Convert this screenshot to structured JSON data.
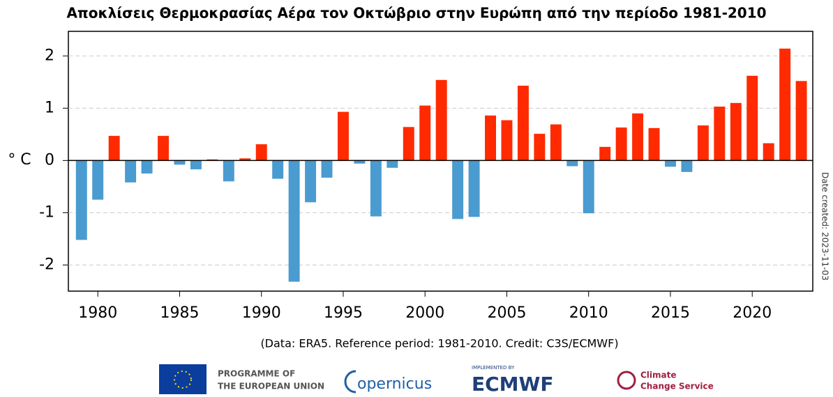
{
  "chart_data": {
    "type": "bar",
    "title": "Αποκλίσεις Θερμοκρασίας Αέρα τον Οκτώβριο στην Ευρώπη από την περίοδο 1981-2010",
    "y_label": "° C",
    "side_note": "Date created: 2023-11-03",
    "caption": "(Data: ERA5.  Reference period: 1981-2010.  Credit: C3S/ECMWF)",
    "x": [
      1979,
      1980,
      1981,
      1982,
      1983,
      1984,
      1985,
      1986,
      1987,
      1988,
      1989,
      1990,
      1991,
      1992,
      1993,
      1994,
      1995,
      1996,
      1997,
      1998,
      1999,
      2000,
      2001,
      2002,
      2003,
      2004,
      2005,
      2006,
      2007,
      2008,
      2009,
      2010,
      2011,
      2012,
      2013,
      2014,
      2015,
      2016,
      2017,
      2018,
      2019,
      2020,
      2021,
      2022,
      2023
    ],
    "values": [
      -1.52,
      -0.75,
      0.47,
      -0.42,
      -0.25,
      0.47,
      -0.08,
      -0.17,
      0.02,
      -0.4,
      0.04,
      0.31,
      -0.35,
      -2.32,
      -0.8,
      -0.33,
      0.93,
      -0.06,
      -1.07,
      -0.14,
      0.64,
      1.05,
      1.54,
      -1.12,
      -1.08,
      0.86,
      0.77,
      1.43,
      0.51,
      0.69,
      -0.11,
      -1.01,
      0.26,
      0.63,
      0.9,
      0.62,
      -0.12,
      -0.22,
      0.67,
      1.03,
      1.1,
      1.62,
      0.33,
      2.14,
      1.52
    ],
    "positive_color": "#ff2a00",
    "negative_color": "#4a9bd0",
    "xlim": [
      1978.2,
      2023.7
    ],
    "xticks": [
      1980,
      1985,
      1990,
      1995,
      2000,
      2005,
      2010,
      2015,
      2020
    ],
    "ylim": [
      -2.5,
      2.47
    ],
    "yticks": [
      -2,
      -1,
      0,
      1,
      2
    ],
    "grid": true
  },
  "footer": {
    "eu_line1": "PROGRAMME OF",
    "eu_line2": "THE EUROPEAN UNION",
    "copernicus": "opernicus",
    "implemented": "IMPLEMENTED BY",
    "ecmwf": "ECMWF",
    "c3s_line1": "Climate",
    "c3s_line2": "Change Service"
  }
}
